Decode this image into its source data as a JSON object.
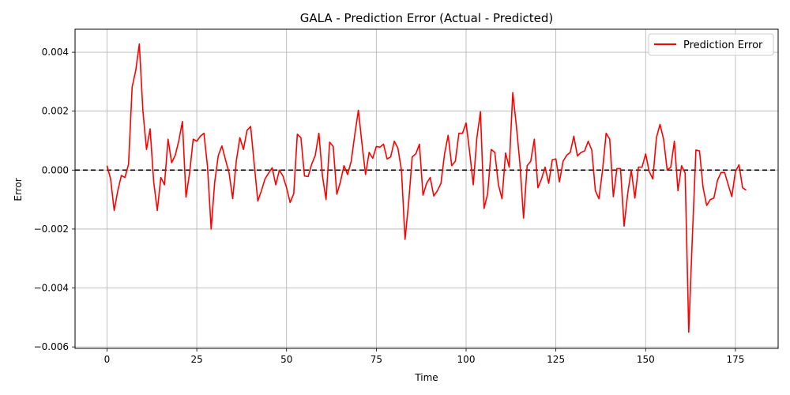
{
  "chart_data": {
    "type": "line",
    "title": "GALA - Prediction Error (Actual - Predicted)",
    "xlabel": "Time",
    "ylabel": "Error",
    "xlim": [
      -8.9,
      186.9
    ],
    "ylim": [
      -0.00605,
      0.00478
    ],
    "xticks": [
      0,
      25,
      50,
      75,
      100,
      125,
      150,
      175
    ],
    "yticks": [
      -0.006,
      -0.004,
      -0.002,
      0.0,
      0.002,
      0.004
    ],
    "xtick_labels": [
      "0",
      "25",
      "50",
      "75",
      "100",
      "125",
      "150",
      "175"
    ],
    "ytick_labels": [
      "−0.006",
      "−0.004",
      "−0.002",
      "0.000",
      "0.002",
      "0.004"
    ],
    "grid": true,
    "legend_position": "top-right",
    "reference_line": {
      "y": 0,
      "style": "dashed",
      "color": "#000000"
    },
    "series": [
      {
        "name": "Prediction Error",
        "color": "#ff0000",
        "x": [
          0,
          1,
          2,
          3,
          4,
          5,
          6,
          7,
          8,
          9,
          10,
          11,
          12,
          13,
          14,
          15,
          16,
          17,
          18,
          19,
          20,
          21,
          22,
          23,
          24,
          25,
          26,
          27,
          28,
          29,
          30,
          31,
          32,
          33,
          34,
          35,
          36,
          37,
          38,
          39,
          40,
          41,
          42,
          43,
          44,
          45,
          46,
          47,
          48,
          49,
          50,
          51,
          52,
          53,
          54,
          55,
          56,
          57,
          58,
          59,
          60,
          61,
          62,
          63,
          64,
          65,
          66,
          67,
          68,
          69,
          70,
          71,
          72,
          73,
          74,
          75,
          76,
          77,
          78,
          79,
          80,
          81,
          82,
          83,
          84,
          85,
          86,
          87,
          88,
          89,
          90,
          91,
          92,
          93,
          94,
          95,
          96,
          97,
          98,
          99,
          100,
          101,
          102,
          103,
          104,
          105,
          106,
          107,
          108,
          109,
          110,
          111,
          112,
          113,
          114,
          115,
          116,
          117,
          118,
          119,
          120,
          121,
          122,
          123,
          124,
          125,
          126,
          127,
          128,
          129,
          130,
          131,
          132,
          133,
          134,
          135,
          136,
          137,
          138,
          139,
          140,
          141,
          142,
          143,
          144,
          145,
          146,
          147,
          148,
          149,
          150,
          151,
          152,
          153,
          154,
          155,
          156,
          157,
          158,
          159,
          160,
          161,
          162,
          163,
          164,
          165,
          166,
          167,
          168,
          169,
          170,
          171,
          172,
          173,
          174,
          175,
          176,
          177,
          178
        ],
        "y": [
          0.00015,
          -0.0003,
          -0.00137,
          -0.0007,
          -0.00018,
          -0.00025,
          0.0002,
          0.00282,
          0.00338,
          0.00428,
          0.002,
          0.0007,
          0.0014,
          -0.0004,
          -0.00137,
          -0.00025,
          -0.0005,
          0.00105,
          0.00025,
          0.0005,
          0.001,
          0.00165,
          -0.00092,
          -0.0001,
          0.00105,
          0.00098,
          0.00115,
          0.00125,
          0.0001,
          -0.002,
          -0.0004,
          0.0005,
          0.00082,
          0.00035,
          -0.0001,
          -0.00097,
          0.0003,
          0.0011,
          0.0007,
          0.00135,
          0.00148,
          0.0002,
          -0.00105,
          -0.0007,
          -0.0003,
          -0.0001,
          8e-05,
          -0.0005,
          0.0,
          -0.0002,
          -0.0006,
          -0.0011,
          -0.0008,
          0.00122,
          0.0011,
          -0.0002,
          -0.00022,
          0.0002,
          0.0005,
          0.00125,
          -0.0002,
          -0.001,
          0.00095,
          0.0008,
          -0.00082,
          -0.0004,
          0.00015,
          -0.00015,
          0.0003,
          0.0012,
          0.00203,
          0.0009,
          -0.00015,
          0.0006,
          0.0004,
          0.0008,
          0.00078,
          0.00088,
          0.00038,
          0.00045,
          0.00098,
          0.00075,
          0.0,
          -0.00235,
          -0.0011,
          0.00045,
          0.00055,
          0.00088,
          -0.00085,
          -0.00045,
          -0.00025,
          -0.00088,
          -0.0007,
          -0.00045,
          0.00055,
          0.00118,
          0.00015,
          0.0003,
          0.00125,
          0.00125,
          0.0016,
          0.0006,
          -0.0005,
          0.0011,
          0.00198,
          -0.0013,
          -0.0008,
          0.0007,
          0.0006,
          -0.0005,
          -0.00097,
          0.00058,
          0.0001,
          0.00263,
          0.0015,
          0.0002,
          -0.00163,
          0.00015,
          0.0003,
          0.00105,
          -0.0006,
          -0.0003,
          0.0001,
          -0.00045,
          0.00035,
          0.00038,
          -0.0004,
          0.0003,
          0.0005,
          0.0006,
          0.00115,
          0.00048,
          0.0006,
          0.00065,
          0.00098,
          0.00068,
          -0.0007,
          -0.00097,
          0.0,
          0.00125,
          0.00105,
          -0.0009,
          5e-05,
          5e-05,
          -0.0019,
          -0.0008,
          0.0,
          -0.00095,
          0.0001,
          0.0001,
          0.00055,
          -5e-05,
          -0.0003,
          0.0011,
          0.00155,
          0.00105,
          0.0,
          0.0001,
          0.00098,
          -0.0007,
          0.00015,
          -0.0001,
          -0.0055,
          -0.0023,
          0.00068,
          0.00065,
          -0.0006,
          -0.0012,
          -0.001,
          -0.00095,
          -0.00035,
          -8e-05,
          -8e-05,
          -0.0005,
          -0.0009,
          -5e-05,
          0.00018,
          -0.0006,
          -0.00068
        ]
      }
    ]
  }
}
